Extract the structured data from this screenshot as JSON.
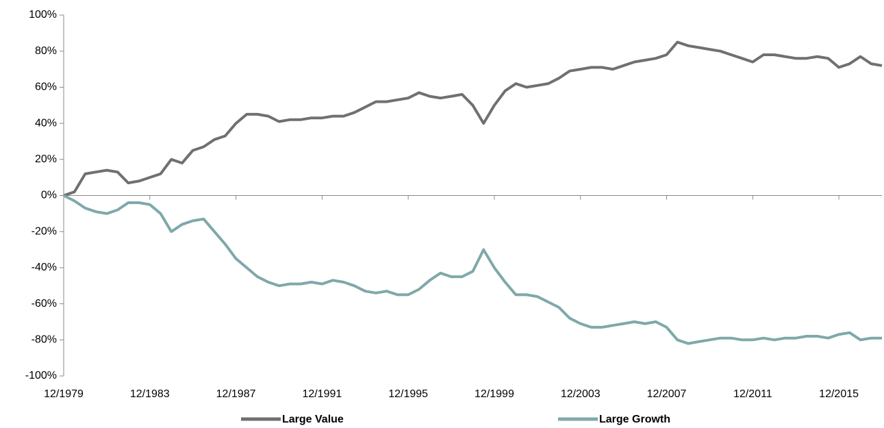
{
  "chart_data": {
    "type": "line",
    "categories": [
      "12/1979",
      null,
      null,
      null,
      null,
      null,
      null,
      null,
      "12/1983",
      null,
      null,
      null,
      null,
      null,
      null,
      null,
      "12/1987",
      null,
      null,
      null,
      null,
      null,
      null,
      null,
      "12/1991",
      null,
      null,
      null,
      null,
      null,
      null,
      null,
      "12/1995",
      null,
      null,
      null,
      null,
      null,
      null,
      null,
      "12/1999",
      null,
      null,
      null,
      null,
      null,
      null,
      null,
      "12/2003",
      null,
      null,
      null,
      null,
      null,
      null,
      null,
      "12/2007",
      null,
      null,
      null,
      null,
      null,
      null,
      null,
      "12/2011",
      null,
      null,
      null,
      null,
      null,
      null,
      null,
      "12/2015",
      null,
      null,
      null,
      null
    ],
    "series": [
      {
        "name": "Large Value",
        "color": "#707070",
        "values": [
          0,
          2,
          12,
          13,
          14,
          13,
          7,
          8,
          10,
          12,
          20,
          18,
          25,
          27,
          31,
          33,
          40,
          45,
          45,
          44,
          41,
          42,
          42,
          43,
          43,
          44,
          44,
          46,
          49,
          52,
          52,
          53,
          54,
          57,
          55,
          54,
          55,
          56,
          50,
          40,
          50,
          58,
          62,
          60,
          61,
          62,
          65,
          69,
          70,
          71,
          71,
          70,
          72,
          74,
          75,
          76,
          78,
          85,
          83,
          82,
          81,
          80,
          78,
          76,
          74,
          78,
          78,
          77,
          76,
          76,
          77,
          76,
          71,
          73,
          77,
          73,
          72
        ]
      },
      {
        "name": "Large Growth",
        "color": "#7fa8a9",
        "values": [
          0,
          -3,
          -7,
          -9,
          -10,
          -8,
          -4,
          -4,
          -5,
          -10,
          -20,
          -16,
          -14,
          -13,
          -20,
          -27,
          -35,
          -40,
          -45,
          -48,
          -50,
          -49,
          -49,
          -48,
          -49,
          -47,
          -48,
          -50,
          -53,
          -54,
          -53,
          -55,
          -55,
          -52,
          -47,
          -43,
          -45,
          -45,
          -42,
          -30,
          -40,
          -48,
          -55,
          -55,
          -56,
          -59,
          -62,
          -68,
          -71,
          -73,
          -73,
          -72,
          -71,
          -70,
          -71,
          -70,
          -73,
          -80,
          -82,
          -81,
          -80,
          -79,
          -79,
          -80,
          -80,
          -79,
          -80,
          -79,
          -79,
          -78,
          -78,
          -79,
          -77,
          -76,
          -80,
          -79,
          -79
        ]
      }
    ],
    "ylim": [
      -100,
      100
    ],
    "yticks": [
      {
        "value": -100,
        "label": "-100%"
      },
      {
        "value": -80,
        "label": "-80%"
      },
      {
        "value": -60,
        "label": "-60%"
      },
      {
        "value": -40,
        "label": "-40%"
      },
      {
        "value": -20,
        "label": "-20%"
      },
      {
        "value": 0,
        "label": "0%"
      },
      {
        "value": 20,
        "label": "20%"
      },
      {
        "value": 40,
        "label": "40%"
      },
      {
        "value": 60,
        "label": "60%"
      },
      {
        "value": 80,
        "label": "80%"
      },
      {
        "value": 100,
        "label": "100%"
      }
    ],
    "grid": false,
    "legend": "bottom"
  }
}
